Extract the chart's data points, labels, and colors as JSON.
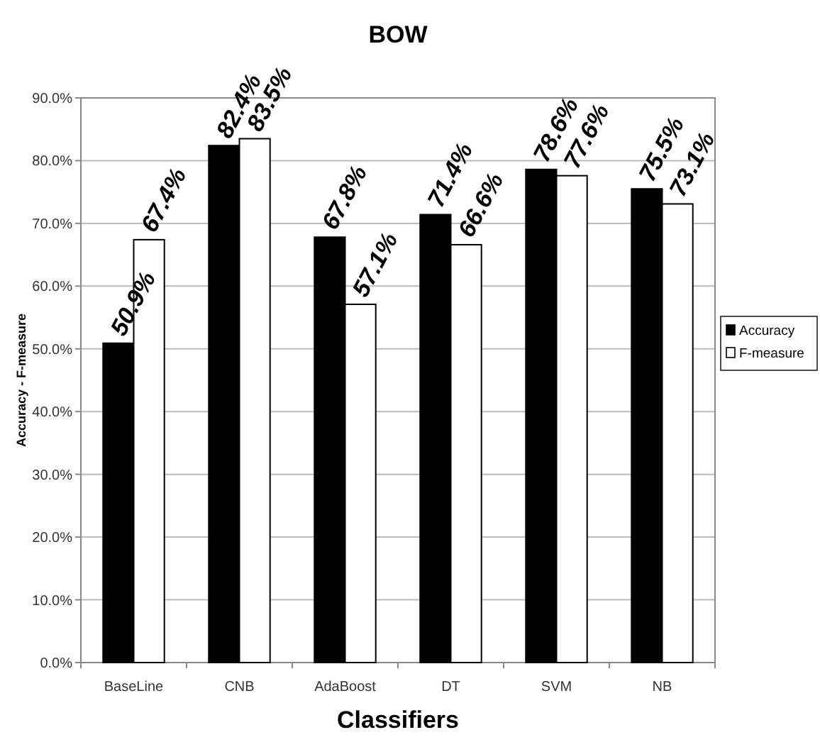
{
  "chart_data": {
    "type": "bar",
    "title": "BOW",
    "xlabel": "Classifiers",
    "ylabel": "Accuracy - F-measure",
    "categories": [
      "BaseLine",
      "CNB",
      "AdaBoost",
      "DT",
      "SVM",
      "NB"
    ],
    "series": [
      {
        "name": "Accuracy",
        "color": "#000000",
        "values": [
          50.9,
          82.4,
          67.8,
          71.4,
          78.6,
          75.5
        ],
        "value_labels": [
          "50.9%",
          "82.4%",
          "67.8%",
          "71.4%",
          "78.6%",
          "75.5%"
        ]
      },
      {
        "name": "F-measure",
        "color": "#ffffff",
        "values": [
          67.4,
          83.5,
          57.1,
          66.6,
          77.6,
          73.1
        ],
        "value_labels": [
          "67.4%",
          "83.5%",
          "57.1%",
          "66.6%",
          "77.6%",
          "73.1%"
        ]
      }
    ],
    "ylim": [
      0,
      90
    ],
    "yticks": [
      {
        "value": 0,
        "label": "0.0%"
      },
      {
        "value": 10,
        "label": "10.0%"
      },
      {
        "value": 20,
        "label": "20.0%"
      },
      {
        "value": 30,
        "label": "30.0%"
      },
      {
        "value": 40,
        "label": "40.0%"
      },
      {
        "value": 50,
        "label": "50.0%"
      },
      {
        "value": 60,
        "label": "60.0%"
      },
      {
        "value": 70,
        "label": "70.0%"
      },
      {
        "value": 80,
        "label": "80.0%"
      },
      {
        "value": 90,
        "label": "90.0%"
      }
    ],
    "grid": "y",
    "legend": "right"
  }
}
